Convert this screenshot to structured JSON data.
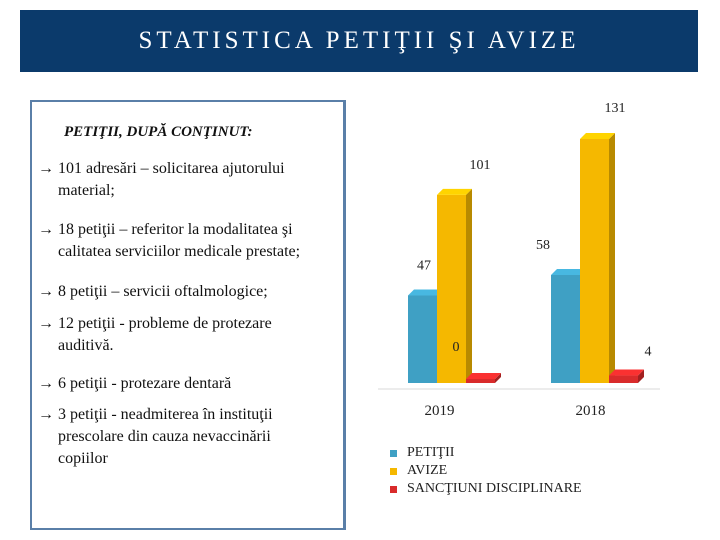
{
  "title": "STATISTICA PETIŢII ŞI AVIZE",
  "content": {
    "heading": "PETIŢII, DUPĂ CONŢINUT:",
    "arrow_glyph": "→",
    "items": [
      {
        "line1": "101 adresări – solicitarea ajutorului",
        "line2": "material;"
      },
      {
        "line1": "18 petiţii – referitor la modalitatea şi",
        "line2": "calitatea serviciilor medicale prestate;"
      },
      {
        "line1": "8 petiţii – servicii oftalmologice;",
        "line2": ""
      },
      {
        "line1": "12 petiţii - probleme de protezare",
        "line2": "auditivă."
      },
      {
        "line1": "6 petiţii - protezare dentară",
        "line2": ""
      },
      {
        "line1": "3 petiţii - neadmiterea în instituţii",
        "line2": "prescolare din cauza nevaccinării",
        "line3": "copiilor"
      }
    ]
  },
  "chart_data": {
    "type": "bar",
    "categories": [
      "2019",
      "2018"
    ],
    "series": [
      {
        "name": "PETIŢII",
        "values": [
          47,
          58
        ],
        "color": "#3fa0c4"
      },
      {
        "name": "AVIZE",
        "values": [
          101,
          131
        ],
        "color": "#f5b800"
      },
      {
        "name": "SANCŢIUNI DISCIPLINARE",
        "values": [
          0,
          4
        ],
        "color": "#d92b2b"
      }
    ],
    "ylim": [
      0,
      131
    ],
    "grid": false,
    "legend": "bottom-left",
    "style": "3d"
  }
}
